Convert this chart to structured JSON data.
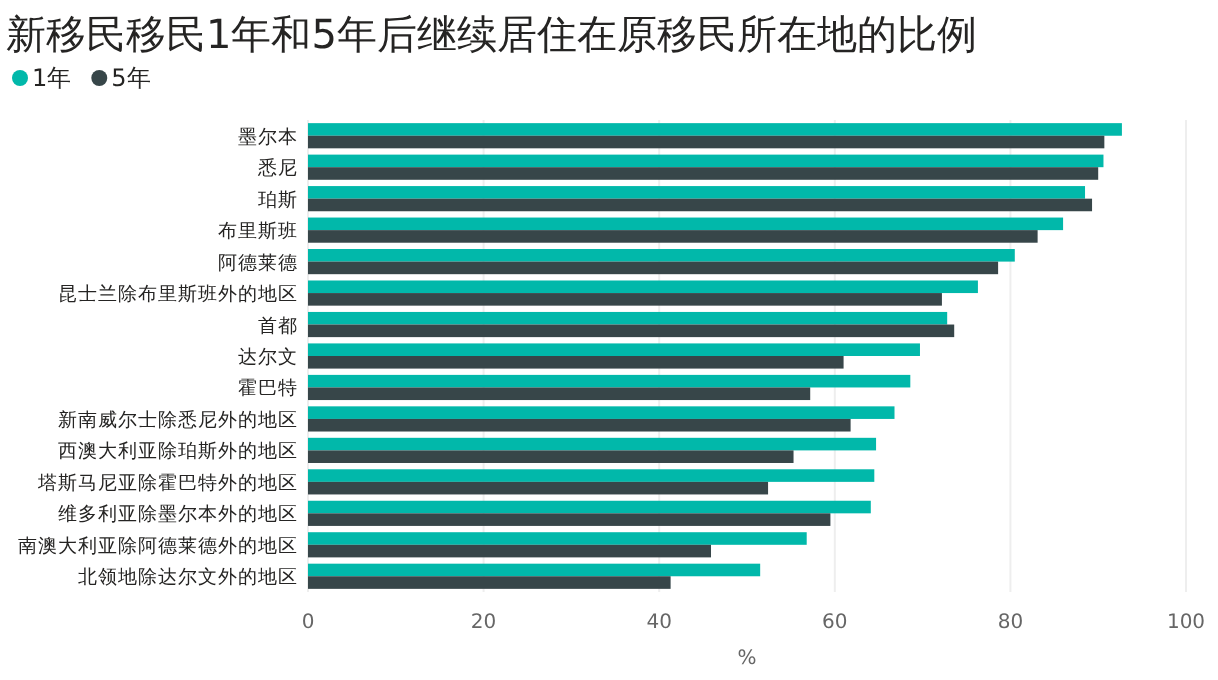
{
  "chart_data": {
    "type": "bar",
    "orientation": "horizontal",
    "title": "新移民移民1年和5年后继续居住在原移民所在地的比例",
    "xlabel": "%",
    "categories": [
      "墨尔本",
      "悉尼",
      "珀斯",
      "布里斯班",
      "阿德莱德",
      "昆士兰除布里斯班外的地区",
      "首都",
      "达尔文",
      "霍巴特",
      "新南威尔士除悉尼外的地区",
      "西澳大利亚除珀斯外的地区",
      "塔斯马尼亚除霍巴特外的地区",
      "维多利亚除墨尔本外的地区",
      "南澳大利亚除阿德莱德外的地区",
      "北领地除达尔文外的地区"
    ],
    "series": [
      {
        "name": "1年",
        "color": "#01b8aa",
        "values": [
          92.7,
          90.6,
          88.5,
          86.0,
          80.5,
          76.3,
          72.8,
          69.7,
          68.6,
          66.8,
          64.7,
          64.5,
          64.1,
          56.8,
          51.5
        ]
      },
      {
        "name": "5年",
        "color": "#374649",
        "values": [
          90.7,
          90.0,
          89.3,
          83.1,
          78.6,
          72.2,
          73.6,
          61.0,
          57.2,
          61.8,
          55.3,
          52.4,
          59.5,
          45.9,
          41.3
        ]
      }
    ],
    "xlim": [
      0,
      100
    ],
    "xticks": [
      0,
      20,
      40,
      60,
      80,
      100
    ],
    "grid": "x",
    "legend": "top left"
  }
}
